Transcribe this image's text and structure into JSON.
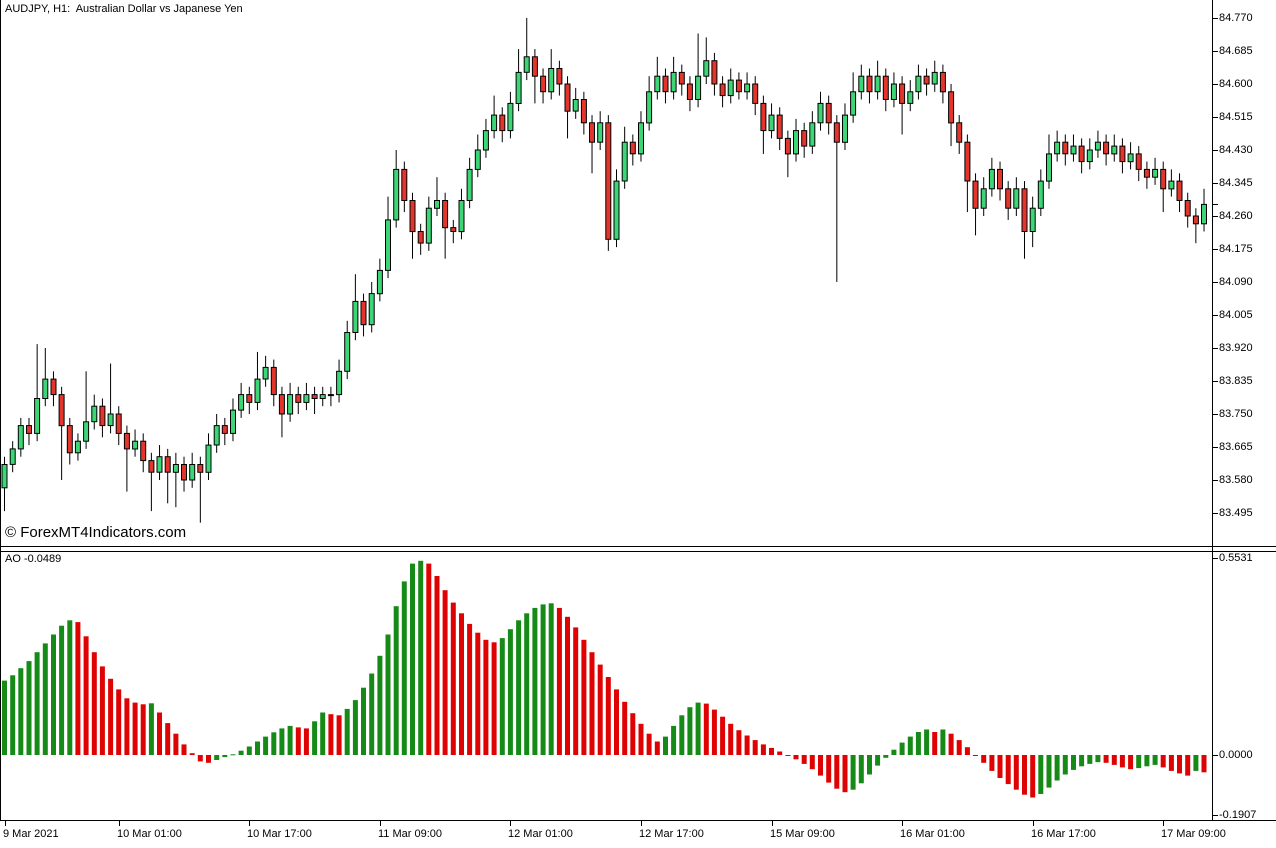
{
  "header": {
    "title": "AUDJPY, H1:  Australian Dollar vs Japanese Yen"
  },
  "watermark": {
    "text": "© ForexMT4Indicators.com"
  },
  "colors": {
    "background": "#ffffff",
    "bull_fill": "#3cd676",
    "bear_fill": "#e3352c",
    "candle_outline": "#000000",
    "wick": "#000000",
    "ao_up": "#168a16",
    "ao_down": "#de0202",
    "axis": "#000000"
  },
  "chart_data": [
    {
      "type": "candlestick",
      "title": "AUDJPY, H1:  Australian Dollar vs Japanese Yen",
      "symbol": "AUDJPY",
      "timeframe": "H1",
      "y_axis": {
        "labels": [
          "84.770",
          "84.685",
          "84.600",
          "84.515",
          "84.430",
          "84.345",
          "84.260",
          "84.175",
          "84.090",
          "84.005",
          "83.920",
          "83.835",
          "83.750",
          "83.665",
          "83.580",
          "83.495"
        ],
        "max": 84.77,
        "min": 83.495,
        "step": 0.085,
        "current_price": 84.29
      },
      "x_axis": {
        "labels": [
          "9 Mar 2021",
          "10 Mar 01:00",
          "10 Mar 17:00",
          "11 Mar 09:00",
          "12 Mar 01:00",
          "12 Mar 17:00",
          "15 Mar 09:00",
          "16 Mar 01:00",
          "16 Mar 17:00",
          "17 Mar 09:00"
        ],
        "tick_indices": [
          0,
          14,
          30,
          46,
          62,
          78,
          94,
          110,
          126,
          142
        ]
      },
      "open_first": 83.56,
      "closes": [
        83.62,
        83.66,
        83.72,
        83.7,
        83.79,
        83.84,
        83.8,
        83.72,
        83.65,
        83.68,
        83.73,
        83.77,
        83.72,
        83.75,
        83.7,
        83.66,
        83.68,
        83.63,
        83.6,
        83.64,
        83.6,
        83.62,
        83.58,
        83.62,
        83.6,
        83.67,
        83.72,
        83.7,
        83.76,
        83.8,
        83.78,
        83.84,
        83.87,
        83.8,
        83.75,
        83.8,
        83.78,
        83.8,
        83.79,
        83.8,
        83.8,
        83.86,
        83.96,
        84.04,
        83.98,
        84.06,
        84.12,
        84.25,
        84.38,
        84.3,
        84.22,
        84.19,
        84.28,
        84.3,
        84.23,
        84.22,
        84.3,
        84.38,
        84.43,
        84.48,
        84.52,
        84.48,
        84.55,
        84.63,
        84.67,
        84.62,
        84.58,
        84.64,
        84.6,
        84.53,
        84.56,
        84.5,
        84.45,
        84.5,
        84.2,
        84.35,
        84.45,
        84.42,
        84.5,
        84.58,
        84.62,
        84.58,
        84.63,
        84.6,
        84.56,
        84.62,
        84.66,
        84.6,
        84.57,
        84.61,
        84.58,
        84.6,
        84.55,
        84.48,
        84.52,
        84.46,
        84.42,
        84.48,
        84.44,
        84.5,
        84.55,
        84.5,
        84.45,
        84.52,
        84.58,
        84.62,
        84.58,
        84.62,
        84.56,
        84.6,
        84.55,
        84.58,
        84.62,
        84.6,
        84.63,
        84.58,
        84.5,
        84.45,
        84.35,
        84.28,
        84.33,
        84.38,
        84.33,
        84.28,
        84.33,
        84.22,
        84.28,
        84.35,
        84.42,
        84.45,
        84.42,
        84.44,
        84.4,
        84.43,
        84.45,
        84.42,
        84.44,
        84.4,
        84.42,
        84.38,
        84.36,
        84.38,
        84.33,
        84.35,
        84.3,
        84.26,
        84.24,
        84.29
      ],
      "highs": [
        83.64,
        83.68,
        83.74,
        83.74,
        83.93,
        83.92,
        83.86,
        83.82,
        83.74,
        83.7,
        83.86,
        83.8,
        83.79,
        83.88,
        83.77,
        83.72,
        83.71,
        83.7,
        83.65,
        83.67,
        83.66,
        83.65,
        83.64,
        83.65,
        83.64,
        83.7,
        83.75,
        83.74,
        83.79,
        83.83,
        83.82,
        83.91,
        83.9,
        83.89,
        83.82,
        83.83,
        83.82,
        83.83,
        83.82,
        83.82,
        83.82,
        83.89,
        83.99,
        84.11,
        84.06,
        84.09,
        84.15,
        84.31,
        84.43,
        84.4,
        84.32,
        84.24,
        84.31,
        84.36,
        84.32,
        84.25,
        84.33,
        84.41,
        84.47,
        84.51,
        84.57,
        84.54,
        84.58,
        84.69,
        84.77,
        84.69,
        84.64,
        84.69,
        84.66,
        84.62,
        84.59,
        84.58,
        84.52,
        84.53,
        84.52,
        84.38,
        84.49,
        84.47,
        84.53,
        84.62,
        84.67,
        84.64,
        84.67,
        84.65,
        84.62,
        84.73,
        84.72,
        84.68,
        84.62,
        84.64,
        84.63,
        84.63,
        84.62,
        84.57,
        84.55,
        84.54,
        84.48,
        84.51,
        84.5,
        84.53,
        84.58,
        84.57,
        84.52,
        84.55,
        84.63,
        84.65,
        84.64,
        84.66,
        84.64,
        84.63,
        84.62,
        84.61,
        84.65,
        84.64,
        84.66,
        84.65,
        84.6,
        84.52,
        84.47,
        84.37,
        84.36,
        84.41,
        84.4,
        84.35,
        84.36,
        84.35,
        84.31,
        84.38,
        84.47,
        84.48,
        84.47,
        84.47,
        84.46,
        84.46,
        84.48,
        84.47,
        84.47,
        84.46,
        84.45,
        84.44,
        84.4,
        84.41,
        84.4,
        84.38,
        84.37,
        84.32,
        84.28,
        84.33
      ],
      "lows": [
        83.5,
        83.6,
        83.64,
        83.67,
        83.68,
        83.77,
        83.77,
        83.58,
        83.62,
        83.63,
        83.66,
        83.71,
        83.69,
        83.7,
        83.67,
        83.55,
        83.64,
        83.6,
        83.5,
        83.58,
        83.52,
        83.51,
        83.55,
        83.56,
        83.47,
        83.58,
        83.65,
        83.67,
        83.68,
        83.74,
        83.75,
        83.76,
        83.82,
        83.77,
        83.69,
        83.73,
        83.75,
        83.76,
        83.75,
        83.77,
        83.77,
        83.78,
        83.84,
        83.94,
        83.95,
        83.96,
        84.04,
        84.1,
        84.23,
        84.27,
        84.15,
        84.16,
        84.17,
        84.26,
        84.15,
        84.19,
        84.2,
        84.28,
        84.36,
        84.41,
        84.46,
        84.45,
        84.46,
        84.53,
        84.61,
        84.55,
        84.55,
        84.56,
        84.57,
        84.46,
        84.51,
        84.47,
        84.37,
        84.43,
        84.17,
        84.18,
        84.33,
        84.39,
        84.4,
        84.48,
        84.56,
        84.55,
        84.56,
        84.57,
        84.53,
        84.54,
        84.6,
        84.57,
        84.54,
        84.55,
        84.56,
        84.56,
        84.52,
        84.42,
        84.46,
        84.43,
        84.36,
        84.4,
        84.41,
        84.42,
        84.48,
        84.47,
        84.09,
        84.43,
        84.5,
        84.56,
        84.55,
        84.56,
        84.53,
        84.54,
        84.47,
        84.53,
        84.56,
        84.57,
        84.58,
        84.55,
        84.44,
        84.42,
        84.27,
        84.21,
        84.26,
        84.31,
        84.3,
        84.25,
        84.26,
        84.15,
        84.18,
        84.26,
        84.33,
        84.4,
        84.39,
        84.4,
        84.37,
        84.38,
        84.41,
        84.39,
        84.4,
        84.37,
        84.38,
        84.35,
        84.33,
        84.34,
        84.27,
        84.31,
        84.27,
        84.23,
        84.19,
        84.22
      ]
    },
    {
      "type": "bar",
      "name": "Awesome Oscillator",
      "label": "AO -0.0489",
      "last_value": -0.0489,
      "y_axis": {
        "labels": [
          "0.5531",
          "0.0000",
          "-0.1907"
        ],
        "max": 0.5531,
        "zero": 0.0,
        "min": -0.1907
      },
      "values": [
        0.21,
        0.225,
        0.245,
        0.265,
        0.29,
        0.315,
        0.34,
        0.365,
        0.38,
        0.375,
        0.335,
        0.29,
        0.25,
        0.215,
        0.185,
        0.16,
        0.148,
        0.143,
        0.146,
        0.12,
        0.09,
        0.06,
        0.03,
        0.005,
        -0.018,
        -0.022,
        -0.014,
        -0.006,
        0.002,
        0.012,
        0.024,
        0.038,
        0.052,
        0.064,
        0.075,
        0.082,
        0.078,
        0.075,
        0.095,
        0.12,
        0.115,
        0.112,
        0.13,
        0.155,
        0.19,
        0.23,
        0.28,
        0.34,
        0.42,
        0.49,
        0.54,
        0.548,
        0.54,
        0.505,
        0.465,
        0.43,
        0.4,
        0.37,
        0.345,
        0.325,
        0.318,
        0.33,
        0.355,
        0.38,
        0.4,
        0.415,
        0.425,
        0.428,
        0.415,
        0.39,
        0.36,
        0.325,
        0.29,
        0.255,
        0.22,
        0.185,
        0.15,
        0.118,
        0.088,
        0.06,
        0.038,
        0.052,
        0.082,
        0.112,
        0.135,
        0.148,
        0.145,
        0.128,
        0.108,
        0.088,
        0.07,
        0.055,
        0.042,
        0.03,
        0.02,
        0.01,
        0.0,
        -0.012,
        -0.025,
        -0.04,
        -0.058,
        -0.078,
        -0.095,
        -0.105,
        -0.098,
        -0.08,
        -0.055,
        -0.03,
        -0.008,
        0.015,
        0.035,
        0.052,
        0.065,
        0.072,
        0.065,
        0.072,
        0.06,
        0.042,
        0.022,
        0.0,
        -0.022,
        -0.045,
        -0.065,
        -0.082,
        -0.098,
        -0.112,
        -0.12,
        -0.11,
        -0.092,
        -0.072,
        -0.055,
        -0.042,
        -0.032,
        -0.025,
        -0.02,
        -0.022,
        -0.028,
        -0.035,
        -0.04,
        -0.037,
        -0.032,
        -0.028,
        -0.035,
        -0.045,
        -0.052,
        -0.058,
        -0.045,
        -0.0489
      ]
    }
  ]
}
